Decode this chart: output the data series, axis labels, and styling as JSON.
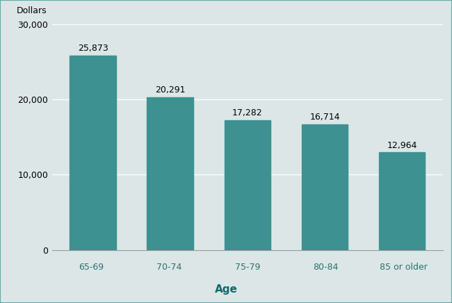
{
  "categories": [
    "65-69",
    "70-74",
    "75-79",
    "80-84",
    "85 or older"
  ],
  "values": [
    25873,
    20291,
    17282,
    16714,
    12964
  ],
  "labels": [
    "25,873",
    "20,291",
    "17,282",
    "16,714",
    "12,964"
  ],
  "bar_color": "#3d9190",
  "plot_bg_color": "#dce6e6",
  "outer_bg_color": "#dce6e6",
  "xlabel_bg_color": "#aad4d0",
  "xlabel_text_color": "#0d6b6b",
  "xtick_text_color": "#2a7070",
  "border_color": "#5aacaa",
  "xlabel": "Age",
  "ylabel": "Dollars",
  "ylim": [
    0,
    30000
  ],
  "yticks": [
    0,
    10000,
    20000,
    30000
  ],
  "ytick_labels": [
    "0",
    "10,000",
    "20,000",
    "30,000"
  ],
  "bar_width": 0.6,
  "label_fontsize": 9,
  "tick_fontsize": 9,
  "xlabel_fontsize": 11,
  "ylabel_fontsize": 9
}
